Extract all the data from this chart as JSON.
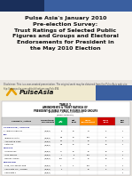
{
  "slide_bg": "#e8e4de",
  "header_navy": "#1a2f5a",
  "header_blue": "#3a5fa0",
  "header_gray_triangle": "#c0b8b0",
  "title_text": "Pulse Asia's January 2010\nPre-election Survey:\nTrust Ratings of Selected Public\nFigures and Groups and Electoral\nEndorsements for President in\nthe May 2010 Election",
  "title_bg": "#f5f2ee",
  "disclaimer": "Disclaimer: This is a user-created presentation. The original work may be obtained from the Pulse Asia web site:\nhttp://www.pulse.com.ph/publications.asp?id=494",
  "logo_bar_bg": "#f0ead0",
  "logo_bar_blue": "#3a5fa0",
  "logo_text": "PulseAsia",
  "table_title1": "TABLE 1",
  "table_title2": "AMENDMENTS & TRUST RATINGS OF",
  "table_title3": "PRESIDENT-ELIGIBLE PUBLIC FIGURES AND GROUPS",
  "table_title4": "January 21 - 31, 2010 (Fieldwork)",
  "table_title5": "(Base: National)",
  "col_green": "#00b050",
  "col_orange": "#ff8c00",
  "col_red": "#cc0000",
  "col_header_bg": "#d0d0d0"
}
